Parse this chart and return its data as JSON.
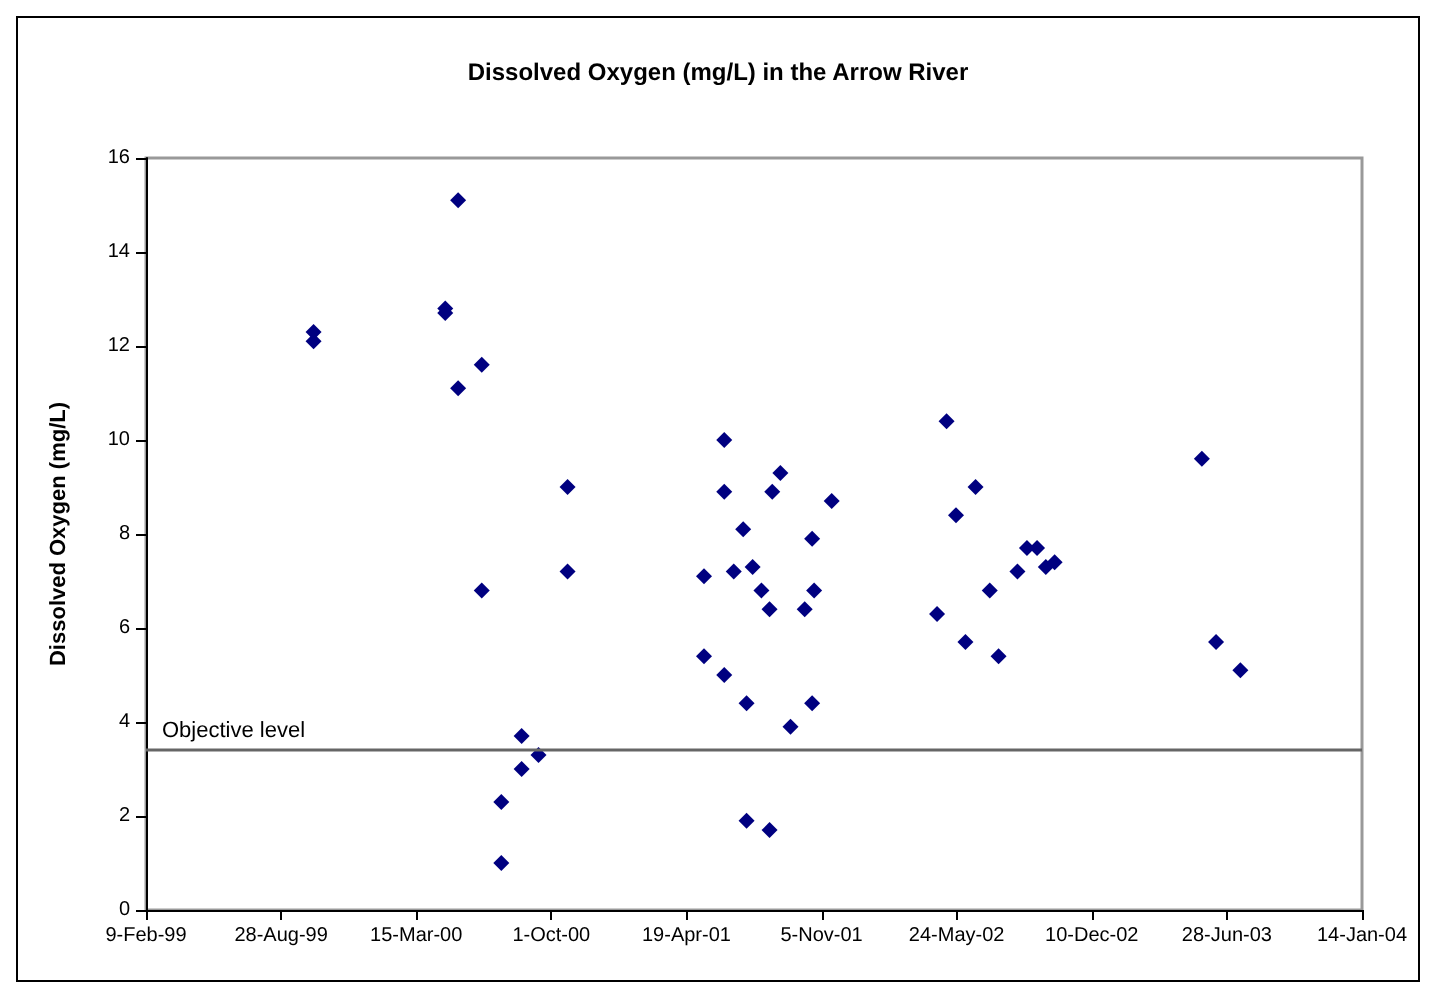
{
  "chart_data": {
    "type": "scatter",
    "title": "Dissolved Oxygen (mg/L) in the Arrow River",
    "ylabel": "Dissolved Oxygen (mg/L)",
    "marker": "diamond",
    "grid": false,
    "x": [
      "1999-10-15",
      "1999-10-15",
      "2000-04-27",
      "2000-04-27",
      "2000-05-16",
      "2000-05-16",
      "2000-06-20",
      "2000-06-20",
      "2000-07-19",
      "2000-07-19",
      "2000-08-18",
      "2000-08-18",
      "2000-09-12",
      "2000-10-25",
      "2000-10-25",
      "2001-05-15",
      "2001-05-15",
      "2001-06-14",
      "2001-06-14",
      "2001-06-14",
      "2001-06-28",
      "2001-07-12",
      "2001-07-17",
      "2001-07-17",
      "2001-07-26",
      "2001-08-08",
      "2001-08-20",
      "2001-08-20",
      "2001-08-24",
      "2001-09-05",
      "2001-09-20",
      "2001-10-11",
      "2001-10-22",
      "2001-10-22",
      "2001-10-25",
      "2001-11-20",
      "2002-04-25",
      "2002-05-09",
      "2002-05-23",
      "2002-06-06",
      "2002-06-21",
      "2002-07-12",
      "2002-07-25",
      "2002-08-22",
      "2002-09-05",
      "2002-09-20",
      "2002-10-03",
      "2002-10-16",
      "2003-05-22",
      "2003-06-12",
      "2003-07-18"
    ],
    "series": [
      {
        "color": "#000080",
        "values": [
          12.3,
          12.1,
          12.8,
          12.7,
          15.1,
          11.1,
          11.6,
          6.8,
          2.3,
          1.0,
          3.7,
          3.0,
          3.3,
          9.0,
          7.2,
          7.1,
          5.4,
          10.0,
          8.9,
          5.0,
          7.2,
          8.1,
          4.4,
          1.9,
          7.3,
          6.8,
          6.4,
          1.7,
          8.9,
          9.3,
          3.9,
          6.4,
          7.9,
          4.4,
          6.8,
          8.7,
          6.3,
          10.4,
          8.4,
          5.7,
          9.0,
          6.8,
          5.4,
          7.2,
          7.7,
          7.7,
          7.3,
          7.4,
          9.6,
          5.7,
          5.1
        ]
      }
    ],
    "xlim": [
      "1999-02-09",
      "2004-01-14"
    ],
    "xticks": [
      {
        "value": "1999-02-09",
        "label": "9-Feb-99"
      },
      {
        "value": "1999-08-28",
        "label": "28-Aug-99"
      },
      {
        "value": "2000-03-15",
        "label": "15-Mar-00"
      },
      {
        "value": "2000-10-01",
        "label": "1-Oct-00"
      },
      {
        "value": "2001-04-19",
        "label": "19-Apr-01"
      },
      {
        "value": "2001-11-05",
        "label": "5-Nov-01"
      },
      {
        "value": "2002-05-24",
        "label": "24-May-02"
      },
      {
        "value": "2002-12-10",
        "label": "10-Dec-02"
      },
      {
        "value": "2003-06-28",
        "label": "28-Jun-03"
      },
      {
        "value": "2004-01-14",
        "label": "14-Jan-04"
      }
    ],
    "ylim": [
      0,
      16
    ],
    "yticks": [
      0,
      2,
      4,
      6,
      8,
      10,
      12,
      14,
      16
    ],
    "ref_lines": [
      {
        "axis": "y",
        "value": 3.4,
        "label": "Objective level",
        "color": "#666666"
      }
    ]
  }
}
